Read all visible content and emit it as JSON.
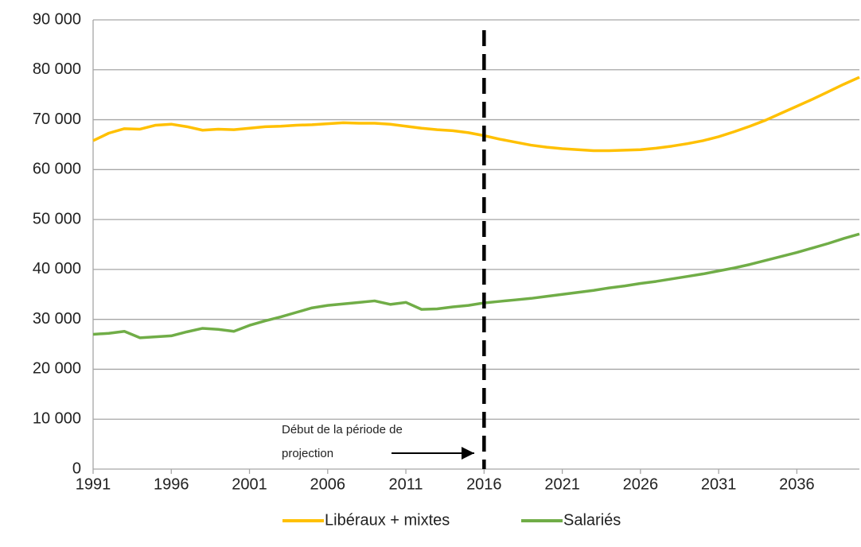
{
  "chart_data": {
    "type": "line",
    "x": [
      1991,
      1992,
      1993,
      1994,
      1995,
      1996,
      1997,
      1998,
      1999,
      2000,
      2001,
      2002,
      2003,
      2004,
      2005,
      2006,
      2007,
      2008,
      2009,
      2010,
      2011,
      2012,
      2013,
      2014,
      2015,
      2016,
      2017,
      2018,
      2019,
      2020,
      2021,
      2022,
      2023,
      2024,
      2025,
      2026,
      2027,
      2028,
      2029,
      2030,
      2031,
      2032,
      2033,
      2034,
      2035,
      2036,
      2037,
      2038,
      2039,
      2040
    ],
    "series": [
      {
        "name": "Libéraux + mixtes",
        "color": "#ffc000",
        "values": [
          65800,
          67300,
          68200,
          68100,
          68900,
          69100,
          68600,
          67900,
          68100,
          68000,
          68300,
          68600,
          68700,
          68900,
          69000,
          69200,
          69400,
          69300,
          69300,
          69100,
          68700,
          68300,
          68000,
          67800,
          67400,
          66800,
          66100,
          65500,
          64900,
          64500,
          64200,
          64000,
          63800,
          63800,
          63900,
          64000,
          64300,
          64700,
          65200,
          65800,
          66600,
          67600,
          68700,
          69900,
          71300,
          72700,
          74100,
          75600,
          77100,
          78500
        ]
      },
      {
        "name": "Salariés",
        "color": "#70ad47",
        "values": [
          27000,
          27200,
          27600,
          26300,
          26500,
          26700,
          27500,
          28200,
          28000,
          27600,
          28800,
          29700,
          30500,
          31400,
          32300,
          32800,
          33100,
          33400,
          33700,
          33000,
          33400,
          32000,
          32100,
          32500,
          32800,
          33300,
          33600,
          33900,
          34200,
          34600,
          35000,
          35400,
          35800,
          36300,
          36700,
          37200,
          37600,
          38100,
          38600,
          39100,
          39700,
          40300,
          41000,
          41800,
          42600,
          43400,
          44300,
          45200,
          46200,
          47100
        ]
      }
    ],
    "xlim": [
      1991,
      2040
    ],
    "xticks": [
      1991,
      1996,
      2001,
      2006,
      2011,
      2016,
      2021,
      2026,
      2031,
      2036
    ],
    "ylim": [
      0,
      90000
    ],
    "yticks": [
      0,
      {
        "value": 10000,
        "label": "10 000"
      },
      {
        "value": 20000,
        "label": "20 000"
      },
      {
        "value": 30000,
        "label": "30 000"
      },
      {
        "value": 40000,
        "label": "40 000"
      },
      {
        "value": 50000,
        "label": "50 000"
      },
      {
        "value": 60000,
        "label": "60 000"
      },
      {
        "value": 70000,
        "label": "70 000"
      },
      {
        "value": 80000,
        "label": "80 000"
      },
      {
        "value": 90000,
        "label": "90 000"
      }
    ],
    "grid": true,
    "projection_start": 2016,
    "annotation": [
      "Début de la période de",
      "projection"
    ],
    "legend": "bottom"
  }
}
